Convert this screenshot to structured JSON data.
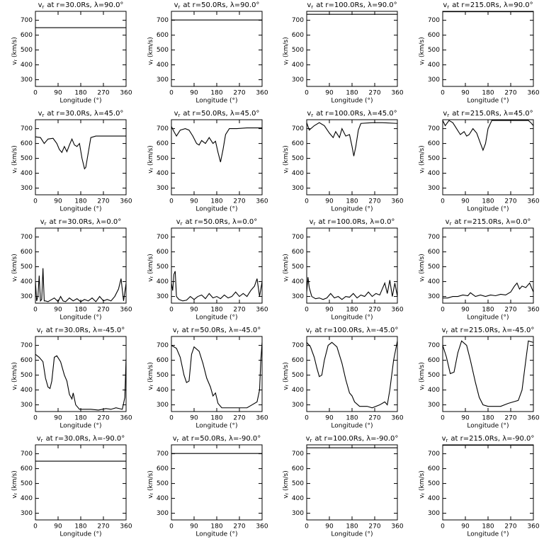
{
  "chart_data": [
    {
      "type": "line",
      "title_symbol": "v",
      "title_subscript": "r",
      "title": "at r=30.0Rs, λ=90.0°",
      "ylabel_symbol": "v",
      "ylabel_subscript": "r",
      "ylabel": "(km/s)",
      "xlabel": "Longitude (°)",
      "xlim": [
        0,
        360
      ],
      "xticks": [
        0,
        90,
        180,
        270,
        360
      ],
      "ylim": [
        255,
        760
      ],
      "yticks": [
        300,
        400,
        500,
        600,
        700
      ],
      "color": "#000000",
      "x": [
        0,
        360
      ],
      "values": [
        650,
        650
      ]
    },
    {
      "type": "line",
      "title_symbol": "v",
      "title_subscript": "r",
      "title": "at r=50.0Rs, λ=90.0°",
      "ylabel_symbol": "v",
      "ylabel_subscript": "r",
      "ylabel": "(km/s)",
      "xlabel": "Longitude (°)",
      "xlim": [
        0,
        360
      ],
      "xticks": [
        0,
        90,
        180,
        270,
        360
      ],
      "ylim": [
        255,
        760
      ],
      "yticks": [
        300,
        400,
        500,
        600,
        700
      ],
      "color": "#000000",
      "x": [
        0,
        360
      ],
      "values": [
        702,
        702
      ]
    },
    {
      "type": "line",
      "title_symbol": "v",
      "title_subscript": "r",
      "title": "at r=100.0Rs, λ=90.0°",
      "ylabel_symbol": "v",
      "ylabel_subscript": "r",
      "ylabel": "(km/s)",
      "xlabel": "Longitude (°)",
      "xlim": [
        0,
        360
      ],
      "xticks": [
        0,
        90,
        180,
        270,
        360
      ],
      "ylim": [
        255,
        760
      ],
      "yticks": [
        300,
        400,
        500,
        600,
        700
      ],
      "color": "#000000",
      "x": [
        0,
        360
      ],
      "values": [
        740,
        740
      ]
    },
    {
      "type": "line",
      "title_symbol": "v",
      "title_subscript": "r",
      "title": "at r=215.0Rs, λ=90.0°",
      "ylabel_symbol": "v",
      "ylabel_subscript": "r",
      "ylabel": "(km/s)",
      "xlabel": "Longitude (°)",
      "xlim": [
        0,
        360
      ],
      "xticks": [
        0,
        90,
        180,
        270,
        360
      ],
      "ylim": [
        255,
        760
      ],
      "yticks": [
        300,
        400,
        500,
        600,
        700
      ],
      "color": "#000000",
      "x": [
        0,
        360
      ],
      "values": [
        757,
        757
      ]
    },
    {
      "type": "line",
      "title_symbol": "v",
      "title_subscript": "r",
      "title": "at r=30.0Rs, λ=45.0°",
      "ylabel_symbol": "v",
      "ylabel_subscript": "r",
      "ylabel": "(km/s)",
      "xlabel": "Longitude (°)",
      "xlim": [
        0,
        360
      ],
      "xticks": [
        0,
        90,
        180,
        270,
        360
      ],
      "ylim": [
        255,
        760
      ],
      "yticks": [
        300,
        400,
        500,
        600,
        700
      ],
      "color": "#000000",
      "x": [
        0,
        20,
        35,
        50,
        70,
        85,
        95,
        105,
        115,
        125,
        135,
        145,
        155,
        165,
        175,
        185,
        195,
        200,
        210,
        220,
        240,
        270,
        300,
        330,
        360
      ],
      "values": [
        645,
        640,
        600,
        630,
        635,
        600,
        560,
        540,
        580,
        545,
        590,
        630,
        590,
        580,
        600,
        500,
        430,
        440,
        540,
        640,
        650,
        650,
        650,
        650,
        650
      ]
    },
    {
      "type": "line",
      "title_symbol": "v",
      "title_subscript": "r",
      "title": "at r=50.0Rs, λ=45.0°",
      "ylabel_symbol": "v",
      "ylabel_subscript": "r",
      "ylabel": "(km/s)",
      "xlabel": "Longitude (°)",
      "xlim": [
        0,
        360
      ],
      "xticks": [
        0,
        90,
        180,
        270,
        360
      ],
      "ylim": [
        255,
        760
      ],
      "yticks": [
        300,
        400,
        500,
        600,
        700
      ],
      "color": "#000000",
      "x": [
        0,
        10,
        20,
        35,
        55,
        70,
        85,
        100,
        110,
        120,
        135,
        150,
        165,
        175,
        185,
        195,
        205,
        215,
        230,
        260,
        300,
        360
      ],
      "values": [
        715,
        680,
        650,
        690,
        700,
        690,
        650,
        600,
        590,
        620,
        600,
        640,
        600,
        615,
        540,
        475,
        560,
        660,
        700,
        700,
        705,
        705
      ]
    },
    {
      "type": "line",
      "title_symbol": "v",
      "title_subscript": "r",
      "title": "at r=100.0Rs, λ=45.0°",
      "ylabel_symbol": "v",
      "ylabel_subscript": "r",
      "ylabel": "(km/s)",
      "xlabel": "Longitude (°)",
      "xlim": [
        0,
        360
      ],
      "xticks": [
        0,
        90,
        180,
        270,
        360
      ],
      "ylim": [
        255,
        760
      ],
      "yticks": [
        300,
        400,
        500,
        600,
        700
      ],
      "color": "#000000",
      "x": [
        0,
        10,
        30,
        50,
        70,
        90,
        105,
        115,
        130,
        140,
        155,
        170,
        180,
        187,
        195,
        205,
        215,
        260,
        300,
        360
      ],
      "values": [
        740,
        690,
        720,
        740,
        720,
        670,
        640,
        680,
        640,
        700,
        650,
        660,
        580,
        515,
        580,
        690,
        735,
        740,
        740,
        735
      ]
    },
    {
      "type": "line",
      "title_symbol": "v",
      "title_subscript": "r",
      "title": "at r=215.0Rs, λ=45.0°",
      "ylabel_symbol": "v",
      "ylabel_subscript": "r",
      "ylabel": "(km/s)",
      "xlabel": "Longitude (°)",
      "xlim": [
        0,
        360
      ],
      "xticks": [
        0,
        90,
        180,
        270,
        360
      ],
      "ylim": [
        255,
        760
      ],
      "yticks": [
        300,
        400,
        500,
        600,
        700
      ],
      "color": "#000000",
      "x": [
        0,
        10,
        25,
        40,
        55,
        70,
        85,
        95,
        105,
        120,
        135,
        150,
        160,
        170,
        180,
        195,
        250,
        340,
        350,
        360
      ],
      "values": [
        755,
        720,
        755,
        740,
        700,
        660,
        680,
        650,
        660,
        700,
        670,
        600,
        555,
        600,
        700,
        755,
        755,
        755,
        740,
        720
      ]
    },
    {
      "type": "line",
      "title_symbol": "v",
      "title_subscript": "r",
      "title": "at r=30.0Rs, λ=0.0°",
      "ylabel_symbol": "v",
      "ylabel_subscript": "r",
      "ylabel": "(km/s)",
      "xlabel": "Longitude (°)",
      "xlim": [
        0,
        360
      ],
      "xticks": [
        0,
        90,
        180,
        270,
        360
      ],
      "ylim": [
        255,
        760
      ],
      "yticks": [
        300,
        400,
        500,
        600,
        700
      ],
      "color": "#000000",
      "x": [
        0,
        5,
        10,
        15,
        20,
        25,
        30,
        35,
        40,
        50,
        60,
        75,
        90,
        100,
        110,
        120,
        135,
        150,
        165,
        180,
        195,
        210,
        225,
        240,
        255,
        270,
        285,
        300,
        315,
        330,
        340,
        350,
        360
      ],
      "values": [
        400,
        270,
        300,
        440,
        270,
        280,
        490,
        270,
        270,
        265,
        275,
        290,
        265,
        300,
        270,
        265,
        290,
        270,
        285,
        265,
        280,
        270,
        290,
        265,
        300,
        270,
        280,
        270,
        300,
        350,
        420,
        270,
        390
      ]
    },
    {
      "type": "line",
      "title_symbol": "v",
      "title_subscript": "r",
      "title": "at r=50.0Rs, λ=0.0°",
      "ylabel_symbol": "v",
      "ylabel_subscript": "r",
      "ylabel": "(km/s)",
      "xlabel": "Longitude (°)",
      "xlim": [
        0,
        360
      ],
      "xticks": [
        0,
        90,
        180,
        270,
        360
      ],
      "ylim": [
        255,
        760
      ],
      "yticks": [
        300,
        400,
        500,
        600,
        700
      ],
      "color": "#000000",
      "x": [
        0,
        5,
        10,
        15,
        20,
        30,
        45,
        60,
        75,
        90,
        105,
        120,
        135,
        150,
        165,
        180,
        195,
        210,
        225,
        240,
        255,
        270,
        285,
        300,
        315,
        330,
        340,
        350,
        360
      ],
      "values": [
        390,
        340,
        450,
        470,
        300,
        280,
        270,
        275,
        300,
        280,
        300,
        310,
        285,
        320,
        290,
        300,
        285,
        310,
        290,
        300,
        330,
        300,
        320,
        300,
        340,
        370,
        420,
        300,
        400
      ]
    },
    {
      "type": "line",
      "title_symbol": "v",
      "title_subscript": "r",
      "title": "at r=100.0Rs, λ=0.0°",
      "ylabel_symbol": "v",
      "ylabel_subscript": "r",
      "ylabel": "(km/s)",
      "xlabel": "Longitude (°)",
      "xlim": [
        0,
        360
      ],
      "xticks": [
        0,
        90,
        180,
        270,
        360
      ],
      "ylim": [
        255,
        760
      ],
      "yticks": [
        300,
        400,
        500,
        600,
        700
      ],
      "color": "#000000",
      "x": [
        0,
        5,
        10,
        20,
        35,
        50,
        65,
        80,
        95,
        110,
        125,
        140,
        155,
        170,
        185,
        200,
        215,
        230,
        245,
        260,
        275,
        290,
        300,
        310,
        320,
        330,
        340,
        350,
        360
      ],
      "values": [
        330,
        430,
        360,
        300,
        285,
        290,
        280,
        290,
        320,
        290,
        300,
        280,
        300,
        295,
        320,
        290,
        310,
        300,
        330,
        300,
        320,
        310,
        350,
        390,
        320,
        410,
        300,
        390,
        300
      ]
    },
    {
      "type": "line",
      "title_symbol": "v",
      "title_subscript": "r",
      "title": "at r=215.0Rs, λ=0.0°",
      "ylabel_symbol": "v",
      "ylabel_subscript": "r",
      "ylabel": "(km/s)",
      "xlabel": "Longitude (°)",
      "xlim": [
        0,
        360
      ],
      "xticks": [
        0,
        90,
        180,
        270,
        360
      ],
      "ylim": [
        255,
        760
      ],
      "yticks": [
        300,
        400,
        500,
        600,
        700
      ],
      "color": "#000000",
      "x": [
        0,
        20,
        40,
        60,
        80,
        100,
        110,
        130,
        150,
        170,
        190,
        210,
        230,
        250,
        270,
        285,
        295,
        305,
        315,
        330,
        345,
        360
      ],
      "values": [
        290,
        290,
        300,
        300,
        310,
        305,
        325,
        300,
        310,
        300,
        310,
        305,
        315,
        310,
        330,
        370,
        390,
        350,
        370,
        360,
        390,
        330
      ]
    },
    {
      "type": "line",
      "title_symbol": "v",
      "title_subscript": "r",
      "title": "at r=30.0Rs, λ=-45.0°",
      "ylabel_symbol": "v",
      "ylabel_subscript": "r",
      "ylabel": "(km/s)",
      "xlabel": "Longitude (°)",
      "xlim": [
        0,
        360
      ],
      "xticks": [
        0,
        90,
        180,
        270,
        360
      ],
      "ylim": [
        255,
        760
      ],
      "yticks": [
        300,
        400,
        500,
        600,
        700
      ],
      "color": "#000000",
      "x": [
        0,
        15,
        30,
        40,
        50,
        58,
        65,
        75,
        85,
        100,
        115,
        125,
        135,
        145,
        150,
        160,
        175,
        195,
        220,
        250,
        280,
        300,
        320,
        345,
        355,
        360
      ],
      "values": [
        640,
        620,
        590,
        480,
        420,
        410,
        460,
        620,
        630,
        590,
        500,
        460,
        370,
        340,
        380,
        300,
        270,
        270,
        270,
        265,
        275,
        270,
        280,
        270,
        350,
        610
      ]
    },
    {
      "type": "line",
      "title_symbol": "v",
      "title_subscript": "r",
      "title": "at r=50.0Rs, λ=-45.0°",
      "ylabel_symbol": "v",
      "ylabel_subscript": "r",
      "ylabel": "(km/s)",
      "xlabel": "Longitude (°)",
      "xlim": [
        0,
        360
      ],
      "xticks": [
        0,
        90,
        180,
        270,
        360
      ],
      "ylim": [
        255,
        760
      ],
      "yticks": [
        300,
        400,
        500,
        600,
        700
      ],
      "color": "#000000",
      "x": [
        0,
        20,
        35,
        50,
        60,
        70,
        80,
        90,
        110,
        125,
        140,
        155,
        165,
        175,
        185,
        200,
        220,
        260,
        300,
        320,
        340,
        350,
        355,
        360
      ],
      "values": [
        700,
        680,
        620,
        500,
        450,
        460,
        640,
        690,
        660,
        580,
        480,
        420,
        360,
        380,
        310,
        280,
        280,
        280,
        280,
        300,
        320,
        400,
        600,
        720
      ]
    },
    {
      "type": "line",
      "title_symbol": "v",
      "title_subscript": "r",
      "title": "at r=100.0Rs, λ=-45.0°",
      "ylabel_symbol": "v",
      "ylabel_subscript": "r",
      "ylabel": "(km/s)",
      "xlabel": "Longitude (°)",
      "xlim": [
        0,
        360
      ],
      "xticks": [
        0,
        90,
        180,
        270,
        360
      ],
      "ylim": [
        255,
        760
      ],
      "yticks": [
        300,
        400,
        500,
        600,
        700
      ],
      "color": "#000000",
      "x": [
        0,
        15,
        30,
        40,
        50,
        60,
        70,
        85,
        100,
        120,
        140,
        155,
        170,
        180,
        190,
        210,
        240,
        260,
        290,
        310,
        320,
        330,
        345,
        360
      ],
      "values": [
        720,
        690,
        620,
        550,
        490,
        500,
        600,
        700,
        720,
        690,
        580,
        470,
        380,
        360,
        320,
        290,
        290,
        280,
        300,
        320,
        300,
        400,
        600,
        730
      ]
    },
    {
      "type": "line",
      "title_symbol": "v",
      "title_subscript": "r",
      "title": "at r=215.0Rs, λ=-45.0°",
      "ylabel_symbol": "v",
      "ylabel_subscript": "r",
      "ylabel": "(km/s)",
      "xlabel": "Longitude (°)",
      "xlim": [
        0,
        360
      ],
      "xticks": [
        0,
        90,
        180,
        270,
        360
      ],
      "ylim": [
        255,
        760
      ],
      "yticks": [
        300,
        400,
        500,
        600,
        700
      ],
      "color": "#000000",
      "x": [
        0,
        15,
        30,
        45,
        60,
        75,
        95,
        110,
        130,
        145,
        160,
        180,
        230,
        260,
        280,
        300,
        315,
        330,
        340,
        360
      ],
      "values": [
        700,
        620,
        510,
        520,
        650,
        730,
        700,
        600,
        450,
        350,
        300,
        290,
        290,
        310,
        320,
        330,
        400,
        600,
        730,
        720
      ]
    },
    {
      "type": "line",
      "title_symbol": "v",
      "title_subscript": "r",
      "title": "at r=30.0Rs, λ=-90.0°",
      "ylabel_symbol": "v",
      "ylabel_subscript": "r",
      "ylabel": "(km/s)",
      "xlabel": "Longitude (°)",
      "xlim": [
        0,
        360
      ],
      "xticks": [
        0,
        90,
        180,
        270,
        360
      ],
      "ylim": [
        255,
        760
      ],
      "yticks": [
        300,
        400,
        500,
        600,
        700
      ],
      "color": "#000000",
      "x": [
        0,
        360
      ],
      "values": [
        650,
        650
      ]
    },
    {
      "type": "line",
      "title_symbol": "v",
      "title_subscript": "r",
      "title": "at r=50.0Rs, λ=-90.0°",
      "ylabel_symbol": "v",
      "ylabel_subscript": "r",
      "ylabel": "(km/s)",
      "xlabel": "Longitude (°)",
      "xlim": [
        0,
        360
      ],
      "xticks": [
        0,
        90,
        180,
        270,
        360
      ],
      "ylim": [
        255,
        760
      ],
      "yticks": [
        300,
        400,
        500,
        600,
        700
      ],
      "color": "#000000",
      "x": [
        0,
        360
      ],
      "values": [
        702,
        702
      ]
    },
    {
      "type": "line",
      "title_symbol": "v",
      "title_subscript": "r",
      "title": "at r=100.0Rs, λ=-90.0°",
      "ylabel_symbol": "v",
      "ylabel_subscript": "r",
      "ylabel": "(km/s)",
      "xlabel": "Longitude (°)",
      "xlim": [
        0,
        360
      ],
      "xticks": [
        0,
        90,
        180,
        270,
        360
      ],
      "ylim": [
        255,
        760
      ],
      "yticks": [
        300,
        400,
        500,
        600,
        700
      ],
      "color": "#000000",
      "x": [
        0,
        360
      ],
      "values": [
        740,
        740
      ]
    },
    {
      "type": "line",
      "title_symbol": "v",
      "title_subscript": "r",
      "title": "at r=215.0Rs, λ=-90.0°",
      "ylabel_symbol": "v",
      "ylabel_subscript": "r",
      "ylabel": "(km/s)",
      "xlabel": "Longitude (°)",
      "xlim": [
        0,
        360
      ],
      "xticks": [
        0,
        90,
        180,
        270,
        360
      ],
      "ylim": [
        255,
        760
      ],
      "yticks": [
        300,
        400,
        500,
        600,
        700
      ],
      "color": "#000000",
      "x": [
        0,
        360
      ],
      "values": [
        757,
        757
      ]
    }
  ]
}
